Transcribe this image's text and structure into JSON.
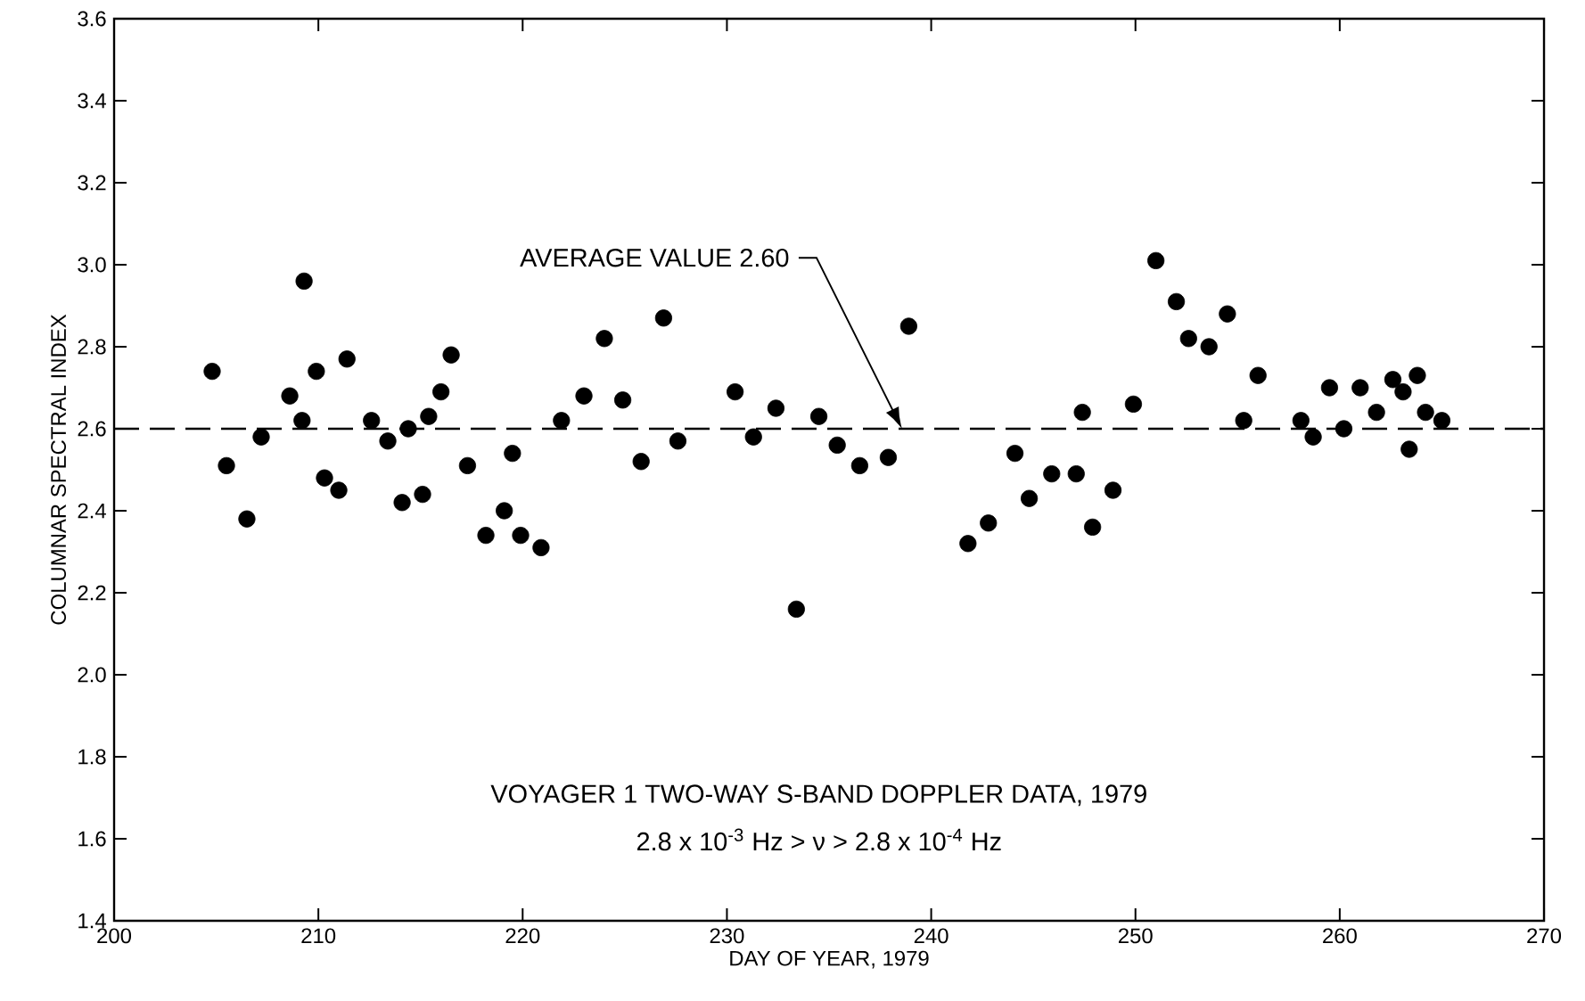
{
  "chart_data": {
    "type": "scatter",
    "xlabel": "DAY OF YEAR, 1979",
    "ylabel": "COLUMNAR SPECTRAL INDEX",
    "xlim": [
      200,
      270
    ],
    "ylim": [
      1.4,
      3.6
    ],
    "xticks": [
      200,
      210,
      220,
      230,
      240,
      250,
      260,
      270
    ],
    "yticks": [
      1.4,
      1.6,
      1.8,
      {
        "value": 2,
        "label": "2.0"
      },
      2.2,
      2.4,
      2.6,
      2.8,
      {
        "value": 3,
        "label": "3.0"
      },
      3.2,
      3.4,
      3.6
    ],
    "marker": "circle",
    "color": "#000000",
    "x": [
      204.8,
      205.5,
      206.5,
      207.2,
      208.6,
      209.2,
      209.3,
      209.9,
      210.3,
      211.0,
      211.4,
      212.6,
      213.4,
      214.1,
      214.4,
      215.1,
      215.4,
      216.0,
      216.5,
      217.3,
      218.2,
      219.1,
      219.5,
      219.9,
      220.9,
      221.9,
      223.0,
      224.0,
      224.9,
      225.8,
      226.9,
      227.6,
      230.4,
      231.3,
      232.4,
      233.4,
      234.5,
      235.4,
      236.5,
      237.9,
      238.9,
      241.8,
      242.8,
      244.1,
      244.8,
      245.9,
      247.1,
      247.4,
      247.9,
      248.9,
      249.9,
      251.0,
      252.0,
      252.6,
      253.6,
      254.5,
      255.3,
      256.0,
      258.1,
      258.7,
      259.5,
      260.2,
      261.0,
      261.8,
      262.6,
      263.1,
      263.4,
      263.8,
      264.2,
      265.0
    ],
    "values": [
      2.74,
      2.51,
      2.38,
      2.58,
      2.68,
      2.62,
      2.96,
      2.74,
      2.48,
      2.45,
      2.77,
      2.62,
      2.57,
      2.42,
      2.6,
      2.44,
      2.63,
      2.69,
      2.78,
      2.51,
      2.34,
      2.4,
      2.54,
      2.34,
      2.31,
      2.62,
      2.68,
      2.82,
      2.67,
      2.52,
      2.87,
      2.57,
      2.69,
      2.58,
      2.65,
      2.16,
      2.63,
      2.56,
      2.51,
      2.53,
      2.85,
      2.32,
      2.37,
      2.54,
      2.43,
      2.49,
      2.49,
      2.64,
      2.36,
      2.45,
      2.66,
      3.01,
      2.91,
      2.82,
      2.8,
      2.88,
      2.62,
      2.73,
      2.62,
      2.58,
      2.7,
      2.6,
      2.7,
      2.64,
      2.72,
      2.69,
      2.55,
      2.73,
      2.64,
      2.62
    ],
    "ref_lines": [
      {
        "axis": "y",
        "value": 2.6,
        "label": "AVERAGE VALUE 2.60",
        "line_style": "dashed",
        "color": "#000000"
      }
    ],
    "annotations": [
      "VOYAGER 1 TWO-WAY S-BAND DOPPLER DATA, 1979",
      "2.8 x 10$^{-3}$ Hz > ν > 2.8 x 10$^{-4}$ Hz"
    ]
  }
}
